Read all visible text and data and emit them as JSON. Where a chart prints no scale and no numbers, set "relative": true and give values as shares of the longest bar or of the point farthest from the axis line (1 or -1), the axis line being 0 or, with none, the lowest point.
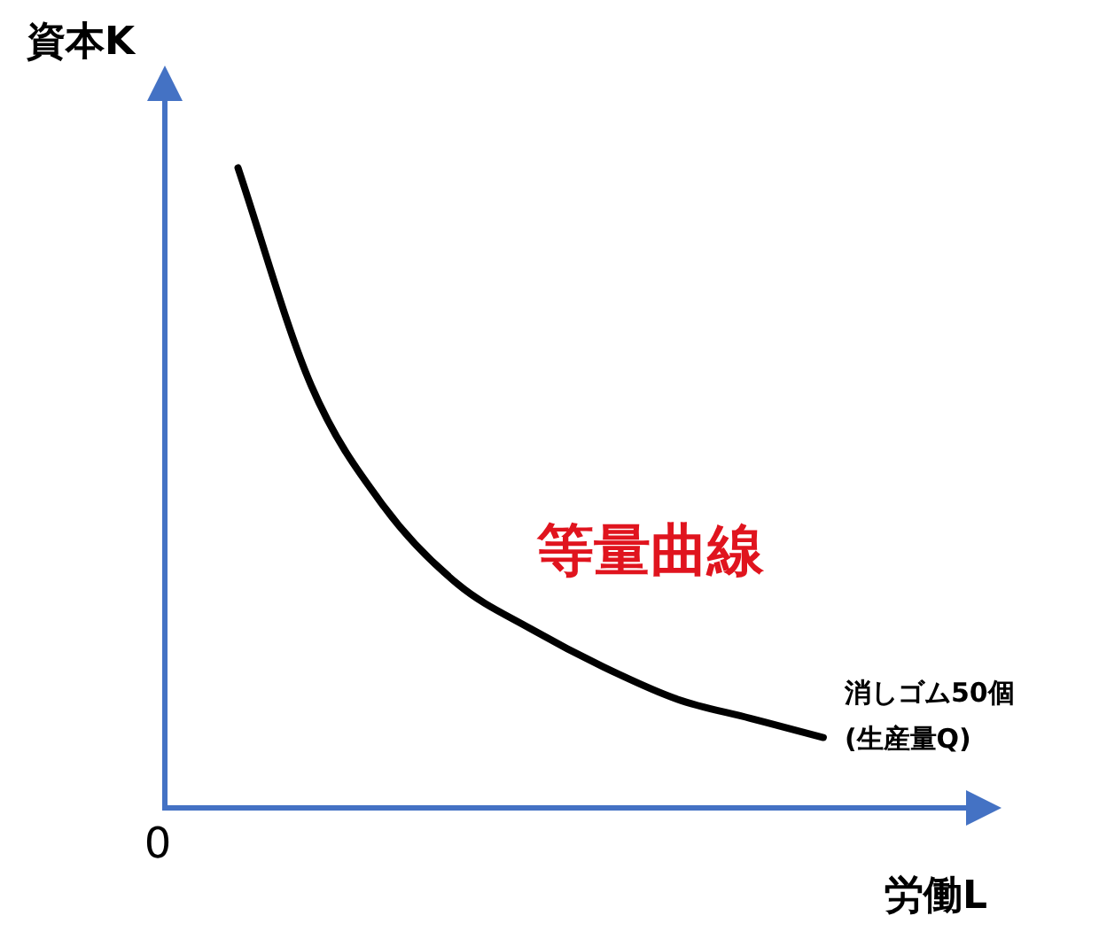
{
  "chart_data": {
    "type": "line",
    "relative": true,
    "xlabel": "労働L",
    "ylabel": "資本K",
    "annotations": [
      "等量曲線",
      "0"
    ],
    "categories": [
      null,
      null,
      null,
      null,
      null,
      null,
      null,
      null,
      null,
      null,
      null,
      null
    ],
    "series": [
      {
        "name": "消しゴム50個\n(生産量Q)",
        "color": "#000000",
        "values": [
          null,
          1.0,
          0.66,
          0.47,
          0.35,
          0.28,
          0.22,
          0.17,
          0.14,
          0.11,
          null,
          null
        ]
      }
    ],
    "grid": false,
    "legend": false,
    "marker": "none",
    "line_style": "solid"
  }
}
